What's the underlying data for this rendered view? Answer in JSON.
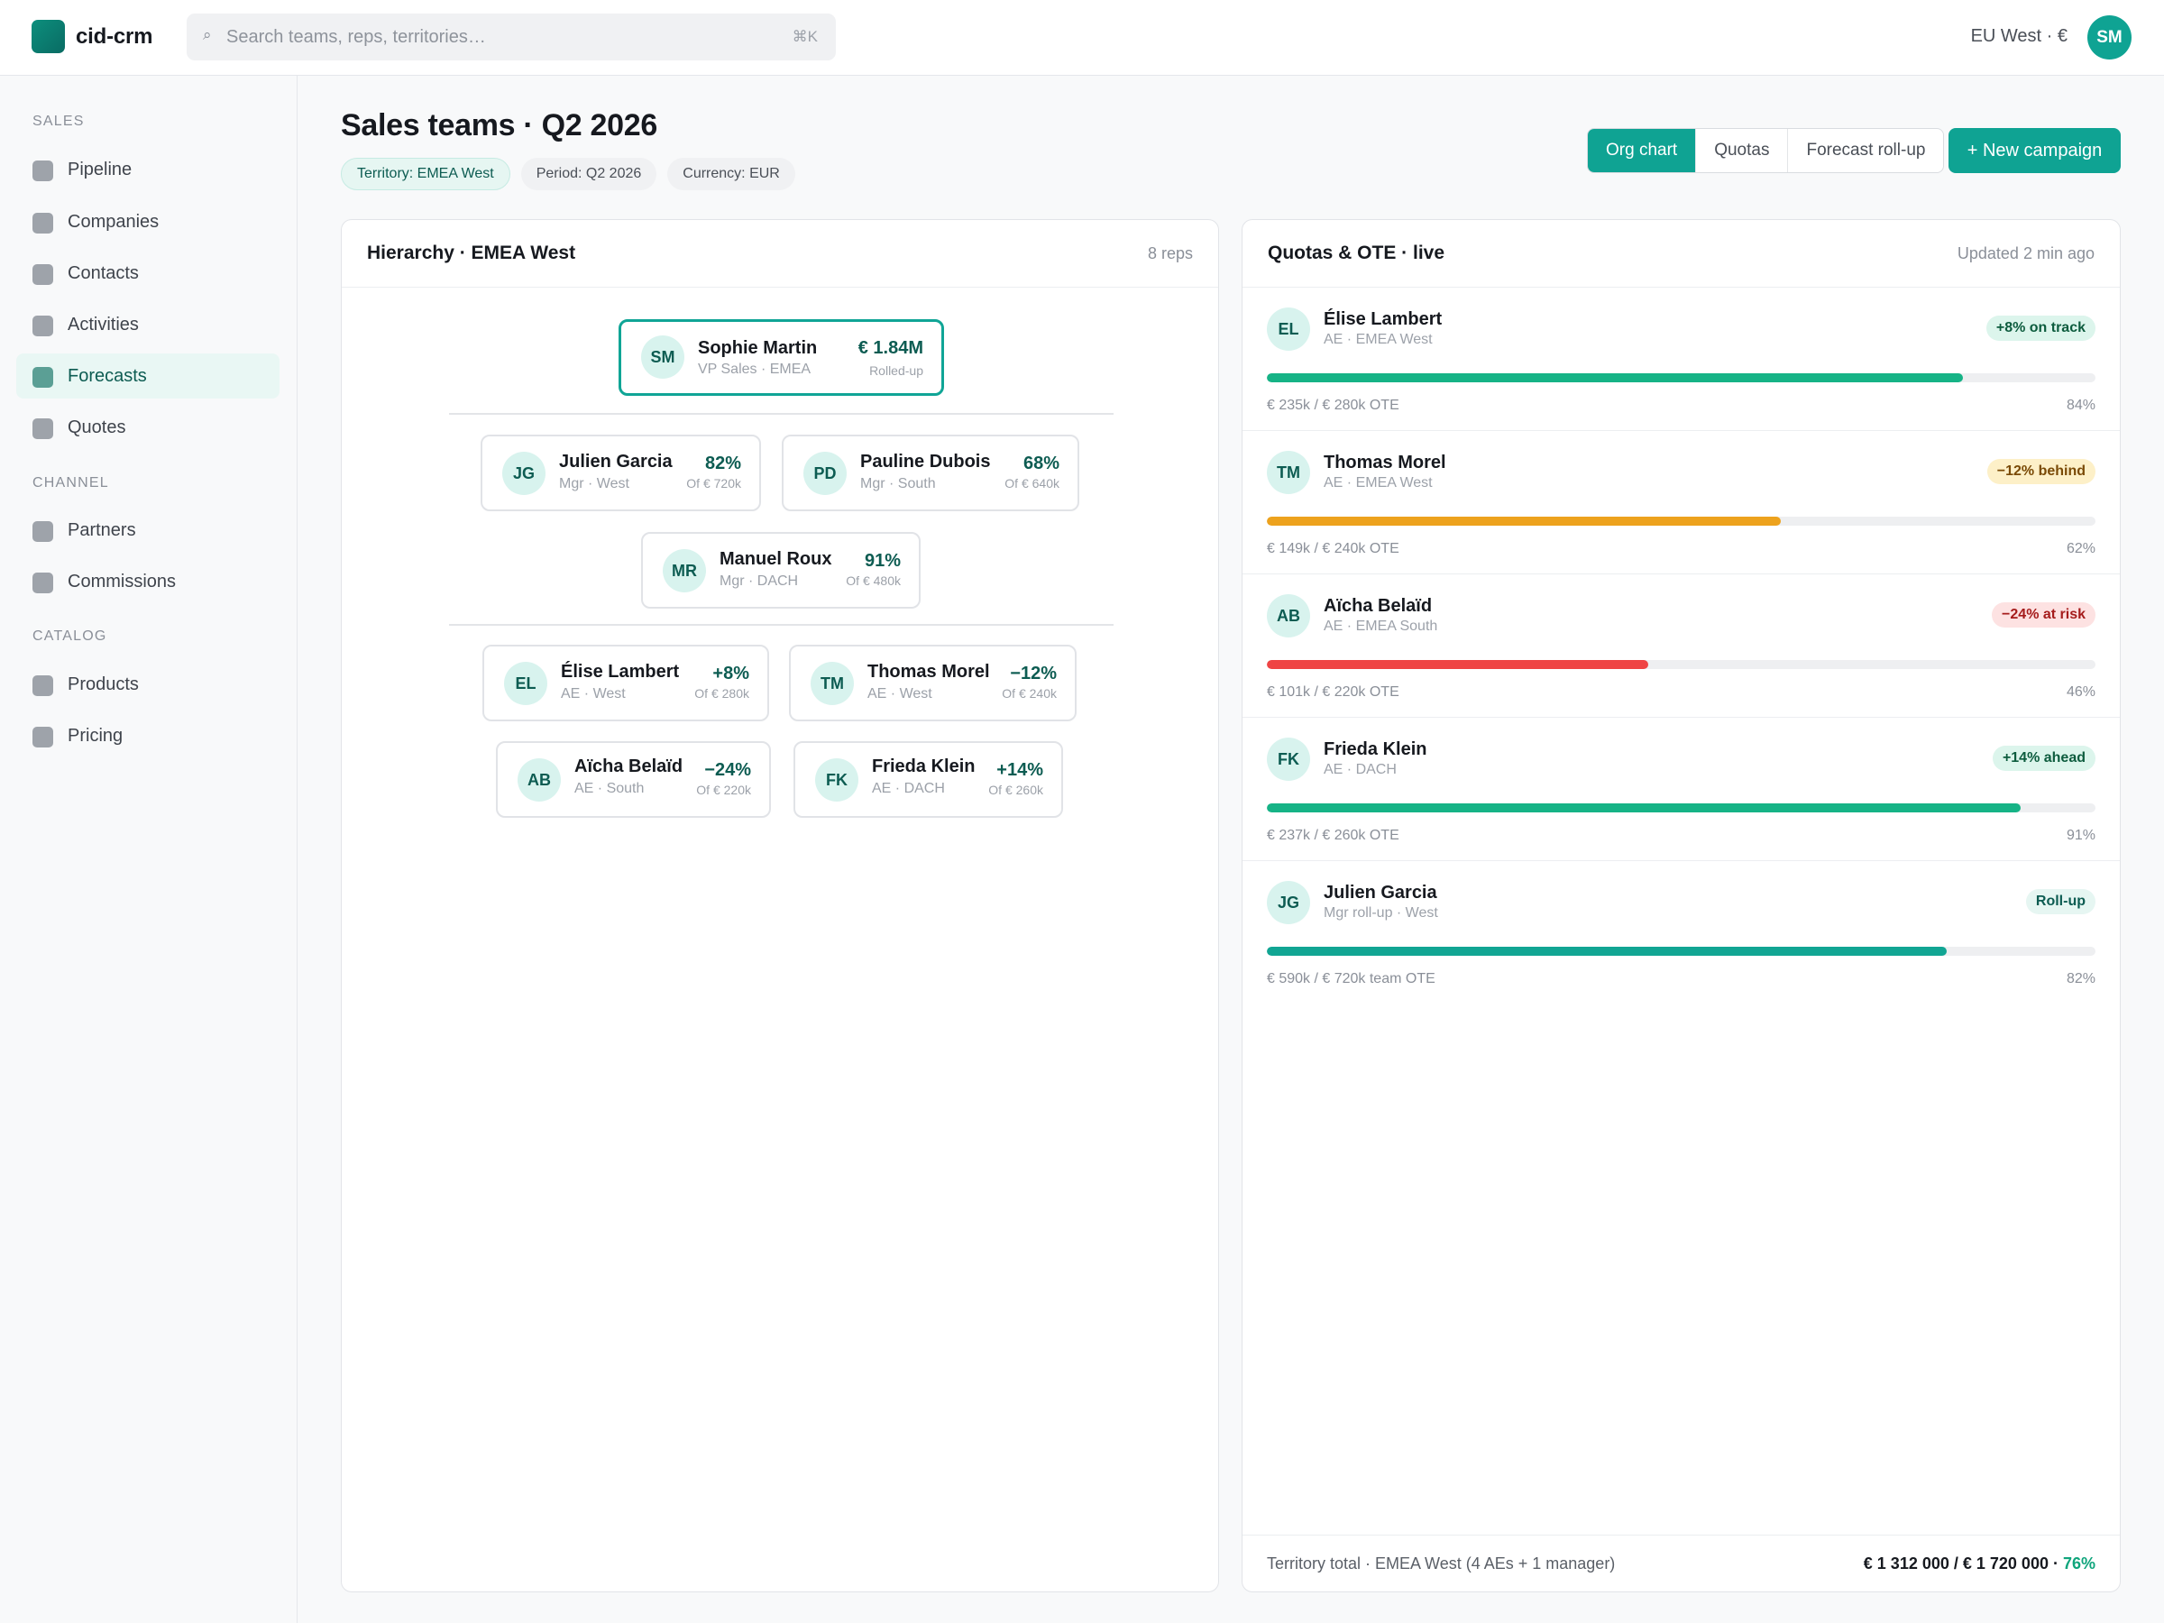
{
  "app": {
    "name": "cid-crm"
  },
  "search": {
    "placeholder": "Search teams, reps, territories…",
    "shortcut": "⌘K"
  },
  "header_right": {
    "region": "EU West · €",
    "user_initials": "SM"
  },
  "sidebar": {
    "sections": [
      {
        "label": "SALES",
        "items": [
          {
            "label": "Pipeline",
            "active": false
          },
          {
            "label": "Companies",
            "active": false
          },
          {
            "label": "Contacts",
            "active": false
          },
          {
            "label": "Activities",
            "active": false
          },
          {
            "label": "Forecasts",
            "active": true
          },
          {
            "label": "Quotes",
            "active": false
          }
        ]
      },
      {
        "label": "CHANNEL",
        "items": [
          {
            "label": "Partners",
            "active": false
          },
          {
            "label": "Commissions",
            "active": false
          }
        ]
      },
      {
        "label": "CATALOG",
        "items": [
          {
            "label": "Products",
            "active": false
          },
          {
            "label": "Pricing",
            "active": false
          }
        ]
      }
    ]
  },
  "page": {
    "title": "Sales teams · Q2 2026",
    "chips": [
      "Territory: EMEA West",
      "Period: Q2 2026",
      "Currency: EUR"
    ],
    "view_tabs": [
      "Org chart",
      "Quotas",
      "Forecast roll-up"
    ],
    "active_view": "Org chart",
    "new_button": "+ New campaign"
  },
  "hierarchy": {
    "title": "Hierarchy · EMEA West",
    "meta": "8 reps",
    "root": {
      "initials": "SM",
      "name": "Sophie Martin",
      "role": "VP Sales · EMEA",
      "value": "€ 1.84M",
      "sub": "Rolled-up"
    },
    "managers": [
      {
        "initials": "JG",
        "name": "Julien Garcia",
        "role": "Mgr · West",
        "value": "82%",
        "sub": "Of € 720k"
      },
      {
        "initials": "PD",
        "name": "Pauline Dubois",
        "role": "Mgr · South",
        "value": "68%",
        "sub": "Of € 640k"
      },
      {
        "initials": "MR",
        "name": "Manuel Roux",
        "role": "Mgr · DACH",
        "value": "91%",
        "sub": "Of € 480k"
      }
    ],
    "reps": [
      {
        "initials": "EL",
        "name": "Élise Lambert",
        "role": "AE · West",
        "value": "+8%",
        "sub": "Of € 280k"
      },
      {
        "initials": "TM",
        "name": "Thomas Morel",
        "role": "AE · West",
        "value": "−12%",
        "sub": "Of € 240k"
      },
      {
        "initials": "AB",
        "name": "Aïcha Belaïd",
        "role": "AE · South",
        "value": "−24%",
        "sub": "Of € 220k"
      },
      {
        "initials": "FK",
        "name": "Frieda Klein",
        "role": "AE · DACH",
        "value": "+14%",
        "sub": "Of € 260k"
      }
    ]
  },
  "quotas": {
    "title": "Quotas & OTE · live",
    "meta": "Updated 2 min ago",
    "rows": [
      {
        "initials": "EL",
        "name": "Élise Lambert",
        "role": "AE · EMEA West",
        "badge": "+8% on track",
        "badge_tone": "green",
        "progress": 84,
        "color": "#16b386",
        "amount": "€ 235k / € 280k OTE",
        "pct": "84%"
      },
      {
        "initials": "TM",
        "name": "Thomas Morel",
        "role": "AE · EMEA West",
        "badge": "−12% behind",
        "badge_tone": "amber",
        "progress": 62,
        "color": "#eda21d",
        "amount": "€ 149k / € 240k OTE",
        "pct": "62%"
      },
      {
        "initials": "AB",
        "name": "Aïcha Belaïd",
        "role": "AE · EMEA South",
        "badge": "−24% at risk",
        "badge_tone": "red",
        "progress": 46,
        "color": "#ef4444",
        "amount": "€ 101k / € 220k OTE",
        "pct": "46%"
      },
      {
        "initials": "FK",
        "name": "Frieda Klein",
        "role": "AE · DACH",
        "badge": "+14% ahead",
        "badge_tone": "green",
        "progress": 91,
        "color": "#16b386",
        "amount": "€ 237k / € 260k OTE",
        "pct": "91%"
      },
      {
        "initials": "JG",
        "name": "Julien Garcia",
        "role": "Mgr roll-up · West",
        "badge": "Roll-up",
        "badge_tone": "teal",
        "progress": 82,
        "color": "#11a593",
        "amount": "€ 590k / € 720k team OTE",
        "pct": "82%"
      }
    ],
    "footer": {
      "label": "Territory total · EMEA West (4 AEs + 1 manager)",
      "value": "€ 1 312 000 / € 1 720 000 · ",
      "pct": "76%"
    }
  }
}
